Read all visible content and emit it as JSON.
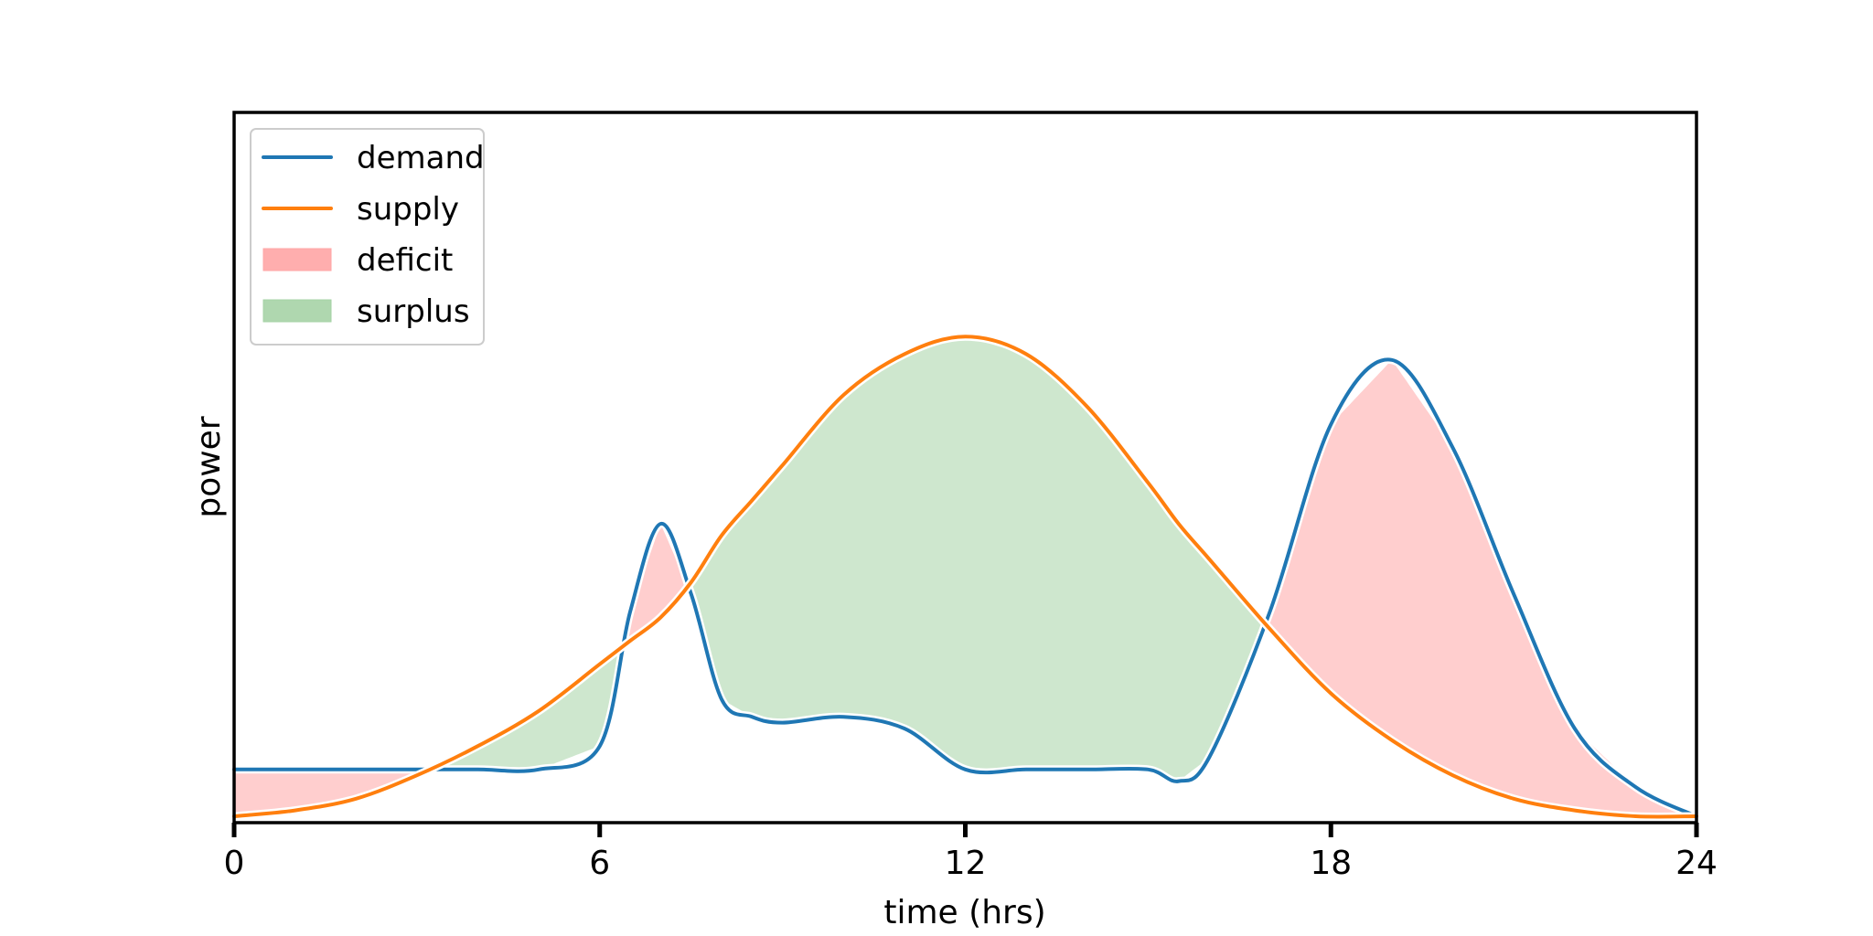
{
  "chart_data": {
    "type": "line",
    "title": "",
    "xlabel": "time (hrs)",
    "ylabel": "power",
    "xlim": [
      0,
      24
    ],
    "ylim": [
      0,
      1
    ],
    "xticks": [
      "0",
      "6",
      "12",
      "18",
      "24"
    ],
    "yticks": [],
    "grid": false,
    "legend_position": "top-left",
    "x": [
      0,
      1,
      2,
      3,
      4,
      5,
      6,
      6.5,
      7,
      7.5,
      8,
      8.5,
      9,
      10,
      11,
      12,
      13,
      14,
      15,
      15.5,
      16,
      17,
      18,
      19,
      20,
      21,
      22,
      23,
      24
    ],
    "series": [
      {
        "name": "demand",
        "color": "#1f77b4",
        "values": [
          0.08,
          0.08,
          0.08,
          0.08,
          0.08,
          0.08,
          0.12,
          0.35,
          0.5,
          0.38,
          0.2,
          0.17,
          0.16,
          0.17,
          0.15,
          0.08,
          0.08,
          0.08,
          0.08,
          0.06,
          0.1,
          0.35,
          0.67,
          0.78,
          0.63,
          0.38,
          0.15,
          0.05,
          0.0
        ]
      },
      {
        "name": "supply",
        "color": "#ff7f0e",
        "values": [
          0.0,
          0.01,
          0.03,
          0.07,
          0.12,
          0.18,
          0.26,
          0.3,
          0.34,
          0.4,
          0.48,
          0.54,
          0.6,
          0.72,
          0.79,
          0.82,
          0.79,
          0.7,
          0.57,
          0.5,
          0.44,
          0.32,
          0.21,
          0.13,
          0.07,
          0.03,
          0.01,
          0.0,
          0.0
        ]
      }
    ],
    "fills": [
      {
        "name": "deficit",
        "color": "#ffa5a5",
        "condition": "demand > supply"
      },
      {
        "name": "surplus",
        "color": "#a6d3a6",
        "condition": "supply > demand"
      }
    ],
    "legend": [
      {
        "label": "demand",
        "kind": "line",
        "color": "#1f77b4"
      },
      {
        "label": "supply",
        "kind": "line",
        "color": "#ff7f0e"
      },
      {
        "label": "deficit",
        "kind": "patch",
        "color": "#ffa5a5"
      },
      {
        "label": "surplus",
        "kind": "patch",
        "color": "#a6d3a6"
      }
    ]
  }
}
